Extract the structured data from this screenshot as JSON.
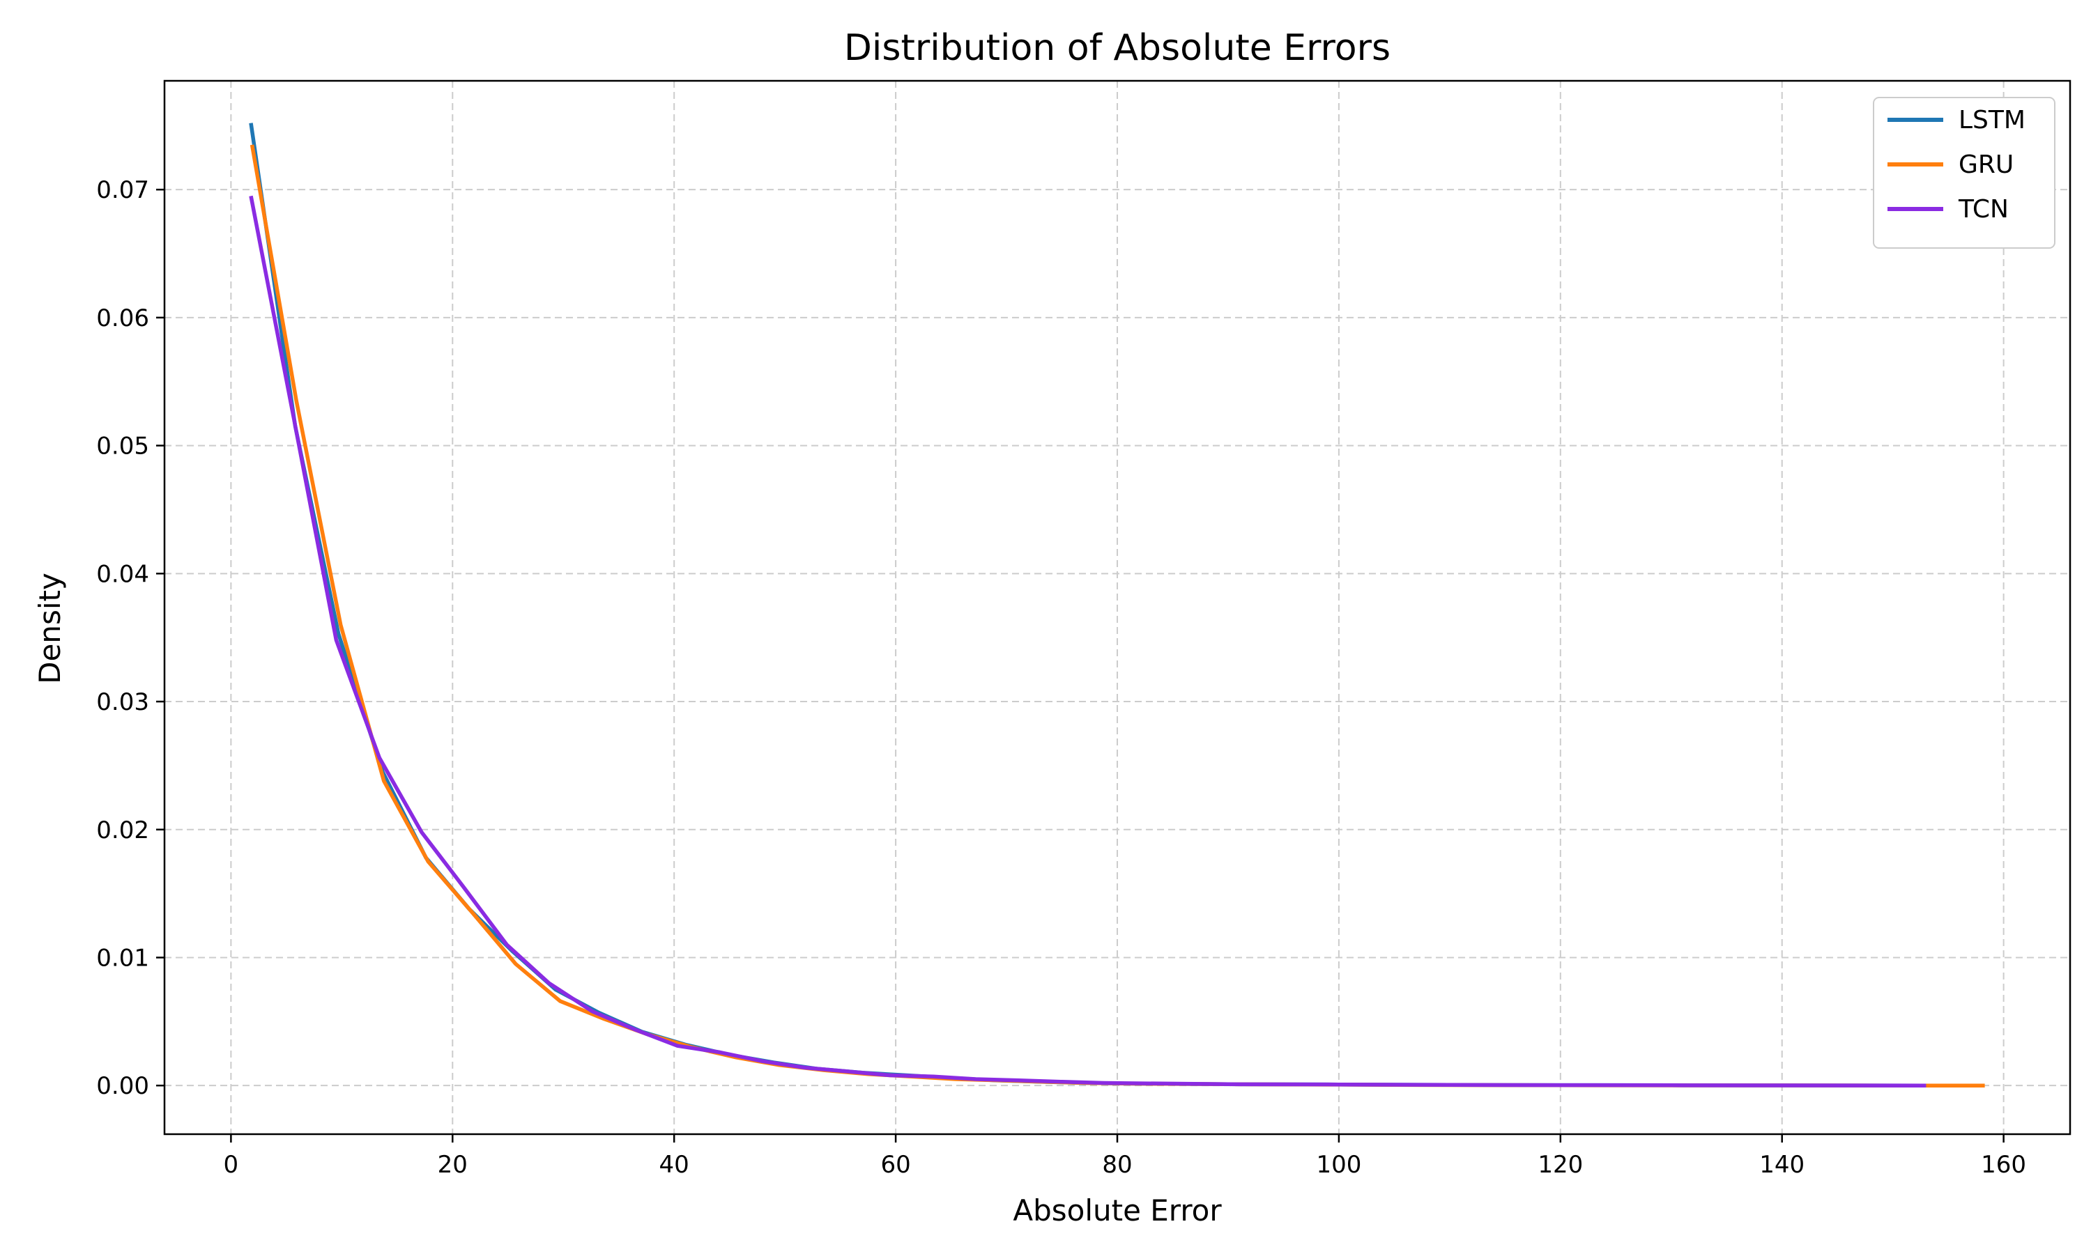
{
  "chart_data": {
    "type": "line",
    "title": "Distribution of Absolute Errors",
    "xlabel": "Absolute Error",
    "ylabel": "Density",
    "xlim": [
      -6,
      166
    ],
    "ylim": [
      -0.0038,
      0.0785
    ],
    "xticks": [
      0,
      20,
      40,
      60,
      80,
      100,
      120,
      140,
      160
    ],
    "yticks": [
      0.0,
      0.01,
      0.02,
      0.03,
      0.04,
      0.05,
      0.06,
      0.07
    ],
    "ytick_labels": [
      "0.00",
      "0.01",
      "0.02",
      "0.03",
      "0.04",
      "0.05",
      "0.06",
      "0.07"
    ],
    "grid": true,
    "legend_position": "top-right",
    "series": [
      {
        "name": "LSTM",
        "color": "#1f77b4",
        "x": [
          1.8,
          5.8,
          9.7,
          13.7,
          17.6,
          21.5,
          25.4,
          29.3,
          33.2,
          37.1,
          41.0,
          45.0,
          49.0,
          53.0,
          57.0,
          61.0,
          65.0,
          69.0,
          73.0,
          77.0,
          81.0,
          90.0,
          100.0,
          110.0,
          120.0,
          130.0,
          140.0,
          153.0
        ],
        "y": [
          0.0752,
          0.0515,
          0.0353,
          0.0245,
          0.0178,
          0.0138,
          0.0105,
          0.0075,
          0.0057,
          0.0042,
          0.0032,
          0.0024,
          0.0018,
          0.0013,
          0.001,
          0.0008,
          0.0006,
          0.0004,
          0.0003,
          0.0002,
          0.00015,
          0.0001,
          8e-05,
          5e-05,
          3e-05,
          2e-05,
          1e-05,
          0.0
        ]
      },
      {
        "name": "GRU",
        "color": "#ff7f0e",
        "x": [
          1.9,
          5.9,
          9.9,
          13.8,
          17.8,
          21.8,
          25.7,
          29.7,
          33.7,
          37.6,
          41.6,
          45.6,
          49.5,
          53.5,
          57.5,
          61.4,
          65.4,
          69.4,
          73.3,
          77.3,
          81.3,
          90.0,
          100.0,
          110.0,
          120.0,
          130.0,
          140.0,
          150.0,
          158.3
        ],
        "y": [
          0.0735,
          0.0535,
          0.036,
          0.0238,
          0.0175,
          0.0135,
          0.0095,
          0.0066,
          0.0052,
          0.004,
          0.003,
          0.0022,
          0.0016,
          0.0012,
          0.0009,
          0.0007,
          0.0005,
          0.0004,
          0.0003,
          0.0002,
          0.00015,
          0.0001,
          7e-05,
          4e-05,
          2e-05,
          1e-05,
          1e-05,
          0.0,
          0.0
        ]
      },
      {
        "name": "TCN",
        "color": "#8a2be2",
        "x": [
          1.8,
          5.7,
          9.5,
          13.4,
          17.2,
          21.0,
          24.9,
          28.7,
          32.6,
          36.4,
          40.3,
          44.1,
          48.0,
          51.8,
          55.7,
          59.5,
          63.4,
          67.2,
          71.1,
          74.9,
          78.8,
          90.0,
          100.0,
          110.0,
          120.0,
          130.0,
          140.0,
          153.0
        ],
        "y": [
          0.0695,
          0.052,
          0.0348,
          0.0256,
          0.0198,
          0.0155,
          0.011,
          0.008,
          0.0058,
          0.0044,
          0.0031,
          0.0026,
          0.0019,
          0.0014,
          0.0011,
          0.0008,
          0.0007,
          0.0005,
          0.0004,
          0.0003,
          0.0002,
          0.0001,
          8e-05,
          5e-05,
          3e-05,
          2e-05,
          1e-05,
          0.0
        ]
      }
    ]
  }
}
